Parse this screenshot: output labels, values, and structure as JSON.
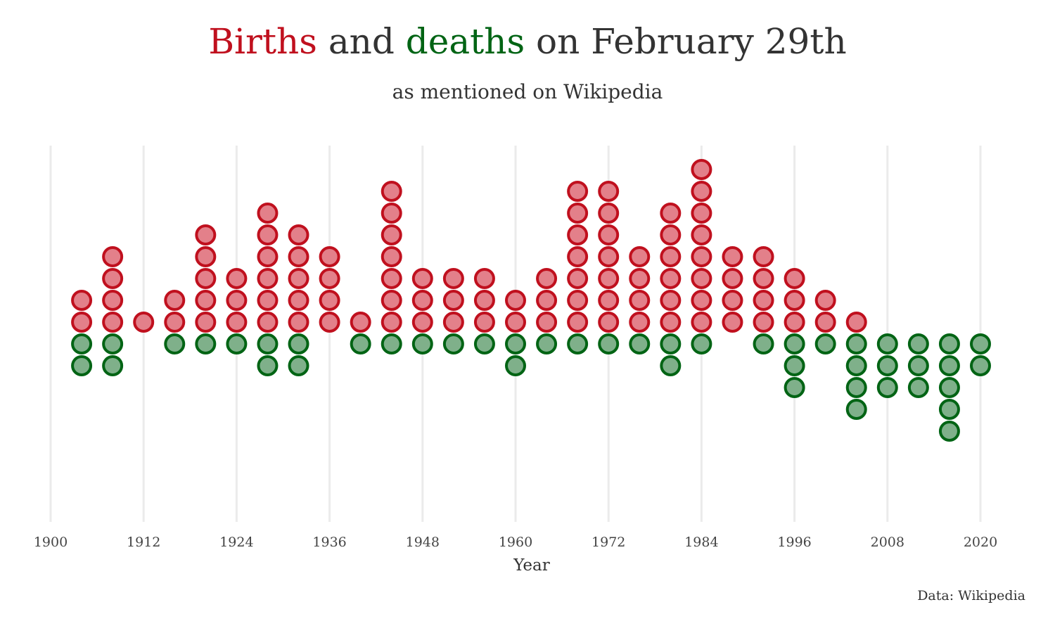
{
  "title": {
    "births_word": "Births",
    "and_word": "and",
    "deaths_word": "deaths",
    "rest": "on February 29th"
  },
  "subtitle": "as mentioned on Wikipedia",
  "caption": "Data: Wikipedia",
  "colors": {
    "births_stroke": "#C0101E",
    "births_fill": "#E3808A",
    "deaths_stroke": "#006414",
    "deaths_fill": "#7FB08A",
    "gridline": "#EBEBEB",
    "text": "#333333"
  },
  "chart_data": {
    "type": "dot",
    "xlabel": "Year",
    "xlim": [
      1900,
      2020
    ],
    "x_ticks": [
      1900,
      1912,
      1924,
      1936,
      1948,
      1960,
      1972,
      1984,
      1996,
      2008,
      2020
    ],
    "grid": "vertical",
    "x": [
      1904,
      1908,
      1912,
      1916,
      1920,
      1924,
      1928,
      1932,
      1936,
      1940,
      1944,
      1948,
      1952,
      1956,
      1960,
      1964,
      1968,
      1972,
      1976,
      1980,
      1984,
      1988,
      1992,
      1996,
      2000,
      2004,
      2008,
      2012,
      2016,
      2020
    ],
    "series": [
      {
        "name": "Births",
        "direction": "up",
        "values": [
          2,
          4,
          1,
          2,
          5,
          3,
          6,
          5,
          4,
          1,
          7,
          3,
          3,
          3,
          2,
          3,
          7,
          7,
          4,
          6,
          8,
          4,
          4,
          3,
          2,
          1,
          0,
          0,
          0,
          0
        ]
      },
      {
        "name": "deaths",
        "direction": "down",
        "values": [
          2,
          2,
          0,
          1,
          1,
          1,
          2,
          2,
          0,
          1,
          1,
          1,
          1,
          1,
          2,
          1,
          1,
          1,
          1,
          2,
          1,
          0,
          1,
          3,
          1,
          4,
          3,
          3,
          5,
          2
        ]
      }
    ]
  }
}
